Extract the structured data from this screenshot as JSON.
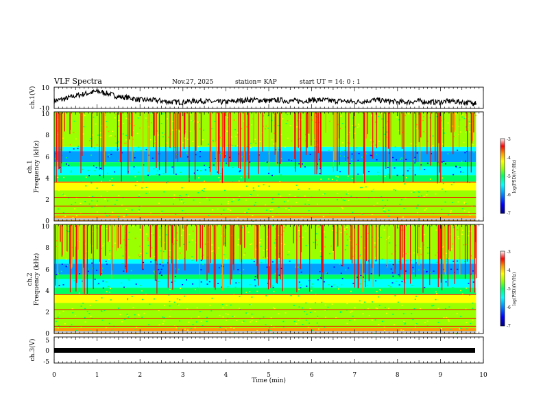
{
  "header": {
    "title": "VLF Spectra",
    "date": "Nov.27, 2025",
    "station": "station= KAP",
    "start": "start  UT =   14: 0  : 1"
  },
  "chart_data": [
    {
      "id": "ch1-waveform",
      "type": "line",
      "ylabel": "ch.1(V)",
      "ylim": [
        -10,
        10
      ],
      "ytick_labels": [
        "10",
        "-10"
      ],
      "x": [
        0,
        0.25,
        0.5,
        0.75,
        1.0,
        1.25,
        1.5,
        1.75,
        2.0,
        2.25,
        2.5,
        2.75,
        3.0,
        3.25,
        3.5,
        3.75,
        4.0,
        4.25,
        4.5,
        4.75,
        5.0,
        5.25,
        5.5,
        5.75,
        6.0,
        6.25,
        6.5,
        6.75,
        7.0,
        7.25,
        7.5,
        7.75,
        8.0,
        8.25,
        8.5,
        8.75,
        9.0,
        9.25,
        9.5,
        9.75,
        9.83
      ],
      "values": [
        -3,
        -1,
        2,
        4,
        6,
        4,
        1,
        0,
        -2,
        -2,
        -3,
        -4,
        -4,
        -3,
        -3,
        -4,
        -4,
        -3,
        -2,
        -2,
        -3,
        -2,
        -3,
        -3,
        -2,
        -2,
        -3,
        -3,
        -4,
        -3,
        -2,
        -3,
        -4,
        -4,
        -3,
        -4,
        -4,
        -3,
        -4,
        -5,
        -5
      ]
    },
    {
      "id": "ch1-spectrogram",
      "type": "heatmap",
      "ylabel": "ch.1\nFrequency (kHz)",
      "ylim": [
        0,
        10
      ],
      "ytick_labels": [
        "0",
        "2",
        "4",
        "6",
        "8",
        "10"
      ],
      "colorbar": {
        "label": "log(PSD)(V²/Hz)",
        "range": [
          -7,
          -3
        ],
        "tick_labels": [
          "-3",
          "-4",
          "-5",
          "-6",
          "-7"
        ]
      }
    },
    {
      "id": "ch2-spectrogram",
      "type": "heatmap",
      "ylabel": "ch.2\nFrequency (kHz)",
      "ylim": [
        0,
        10
      ],
      "ytick_labels": [
        "0",
        "2",
        "4",
        "6",
        "8",
        "10"
      ],
      "colorbar": {
        "label": "log(PSD)(V²/Hz)",
        "range": [
          -7,
          -3
        ],
        "tick_labels": [
          "-3",
          "-4",
          "-5",
          "-6",
          "-7"
        ]
      }
    },
    {
      "id": "ch3-waveform",
      "type": "line",
      "ylabel": "ch.3(V)",
      "ylim": [
        -5,
        5
      ],
      "ytick_labels": [
        "5",
        "0",
        "-5"
      ],
      "x": [
        0,
        9.83
      ],
      "values": [
        0,
        0
      ]
    }
  ],
  "x_axis": {
    "label": "Time  (min)",
    "range": [
      0,
      10
    ],
    "tick_labels": [
      "0",
      "1",
      "2",
      "3",
      "4",
      "5",
      "6",
      "7",
      "8",
      "9",
      "10"
    ]
  },
  "colors": {
    "background": "#ffffff",
    "ink": "#000000",
    "colormap": [
      "#000080",
      "#0000ff",
      "#00a0ff",
      "#00ffff",
      "#00ff60",
      "#9aff00",
      "#ffff00",
      "#ff9900",
      "#ff0000",
      "#ffffff"
    ]
  }
}
